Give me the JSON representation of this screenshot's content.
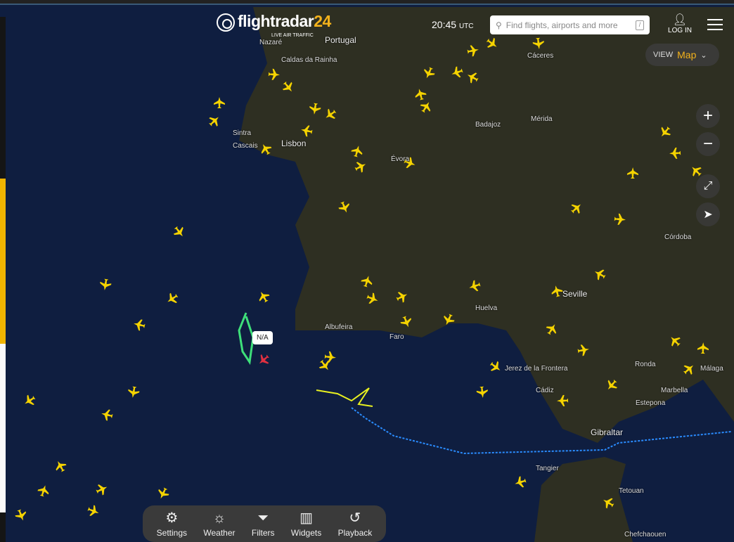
{
  "header": {
    "brand": "flightradar",
    "brand_num": "24",
    "tagline": "LIVE AIR TRAFFIC",
    "time": "20:45",
    "tz": "UTC",
    "search_placeholder": "Find flights, airports and more",
    "search_shortcut": "/",
    "login": "LOG IN"
  },
  "view": {
    "label": "VIEW",
    "value": "Map"
  },
  "map_controls": [
    "zoom-in",
    "zoom-out",
    "fullscreen",
    "locate"
  ],
  "selected_flight": {
    "label": "N/A"
  },
  "places": [
    "Portugal",
    "Nazaré",
    "Caldas da Rainha",
    "Sintra",
    "Cascais",
    "Lisbon",
    "Évora",
    "Badajoz",
    "Mérida",
    "Cáceres",
    "Córdoba",
    "Seville",
    "Huelva",
    "Albufeira",
    "Faro",
    "Jerez de la Frontera",
    "Cádiz",
    "Ronda",
    "Marbella",
    "Estepona",
    "Málaga",
    "Gibraltar",
    "Tangier",
    "Tetouan",
    "Chefchaouen"
  ],
  "toolbar": [
    {
      "label": "Settings",
      "icon": "gear"
    },
    {
      "label": "Weather",
      "icon": "weather"
    },
    {
      "label": "Filters",
      "icon": "filter"
    },
    {
      "label": "Widgets",
      "icon": "widgets"
    },
    {
      "label": "Playback",
      "icon": "history"
    }
  ],
  "colors": {
    "accent": "#f3b21b",
    "plane": "#f5d300",
    "selected": "#e03040",
    "track_green": "#3ee07a",
    "track_blue": "#2a8cff"
  }
}
